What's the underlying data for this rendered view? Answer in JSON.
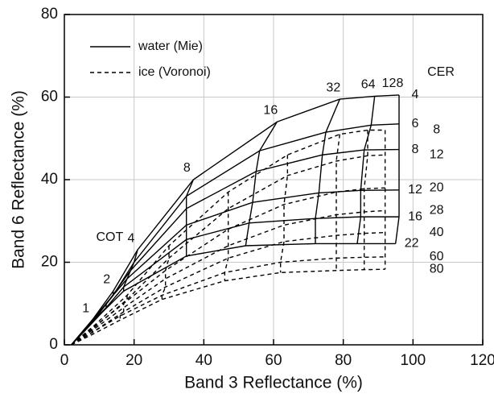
{
  "chart_data": {
    "type": "line",
    "xlabel": "Band 3 Reflectance (%)",
    "ylabel": "Band 6 Reflectance (%)",
    "xlim": [
      0,
      120
    ],
    "ylim": [
      0,
      80
    ],
    "xticks": [
      0,
      20,
      40,
      60,
      80,
      100,
      120
    ],
    "yticks": [
      0,
      20,
      40,
      60,
      80
    ],
    "grid": true,
    "legend": "upper left",
    "annotations": [
      "COT",
      "CER"
    ],
    "cot": [
      null,
      1,
      2,
      4,
      8,
      16,
      32,
      64,
      128
    ],
    "series": [
      {
        "name": "water (Mie)",
        "dashed": false,
        "color": "#000000",
        "curves": [
          {
            "cer": 4,
            "x": [
              2,
              8,
              14,
              21,
              37,
              61,
              79,
              89,
              96
            ],
            "y": [
              0,
              6,
              13,
              23,
              40,
              54,
              59.5,
              60.2,
              60.5
            ]
          },
          {
            "cer": 6,
            "x": [
              2,
              8,
              14,
              20,
              35,
              56,
              75,
              88,
              96
            ],
            "y": [
              0,
              5.5,
              12,
              20,
              36,
              47,
              51.5,
              53.2,
              53.5
            ]
          },
          {
            "cer": 8,
            "x": [
              2,
              7,
              13,
              19,
              35,
              55,
              74,
              86,
              96
            ],
            "y": [
              0,
              5,
              11,
              18,
              33,
              42,
              46,
              47.2,
              47.3
            ]
          },
          {
            "cer": 12,
            "x": [
              2,
              7,
              12,
              18,
              35,
              54,
              73,
              85,
              96
            ],
            "y": [
              0,
              4.5,
              10,
              16,
              29,
              34.5,
              36.8,
              37.4,
              37.5
            ]
          },
          {
            "cer": 16,
            "x": [
              2,
              6,
              12,
              17,
              35,
              53,
              72,
              85,
              96
            ],
            "y": [
              0,
              4,
              9,
              14,
              25.5,
              29.5,
              30.6,
              31,
              31
            ]
          },
          {
            "cer": 22,
            "x": [
              2,
              6,
              11,
              17,
              35,
              52,
              72,
              84,
              95
            ],
            "y": [
              0,
              3.5,
              8,
              13,
              21.5,
              24,
              24.5,
              24.5,
              24.5
            ]
          }
        ]
      },
      {
        "name": "ice (Voronoi)",
        "dashed": true,
        "color": "#000000",
        "curves": [
          {
            "cer": 8,
            "x": [
              2,
              9,
              18,
              30,
              47,
              64,
              79,
              87,
              92
            ],
            "y": [
              0,
              5,
              12,
              24,
              37,
              46,
              51,
              52,
              52
            ]
          },
          {
            "cer": 12,
            "x": [
              2,
              9,
              18,
              30,
              47,
              64,
              78,
              87,
              92
            ],
            "y": [
              0,
              4.5,
              11,
              21,
              33,
              41,
              44.5,
              45.8,
              46
            ]
          },
          {
            "cer": 20,
            "x": [
              2,
              8,
              17,
              29,
              47,
              63,
              78,
              86,
              92
            ],
            "y": [
              0,
              4,
              10,
              18,
              28,
              34,
              37,
              37.8,
              38
            ]
          },
          {
            "cer": 28,
            "x": [
              2,
              8,
              17,
              29,
              47,
              63,
              78,
              86,
              92
            ],
            "y": [
              0,
              3.5,
              9,
              16,
              24,
              29,
              31.5,
              32.2,
              32.5
            ]
          },
          {
            "cer": 40,
            "x": [
              2,
              8,
              17,
              29,
              47,
              63,
              78,
              86,
              92
            ],
            "y": [
              0,
              3,
              8,
              14,
              21,
              25,
              26.5,
              27,
              27.2
            ]
          },
          {
            "cer": 60,
            "x": [
              2,
              8,
              16,
              28,
              46,
              62,
              78,
              86,
              92
            ],
            "y": [
              0,
              3,
              7,
              12,
              17.5,
              20,
              21,
              21.2,
              21.3
            ]
          },
          {
            "cer": 80,
            "x": [
              2,
              8,
              16,
              28,
              46,
              62,
              78,
              86,
              92
            ],
            "y": [
              0,
              2.5,
              6,
              11,
              15.5,
              17.5,
              18,
              18.2,
              18.3
            ]
          }
        ]
      }
    ]
  }
}
